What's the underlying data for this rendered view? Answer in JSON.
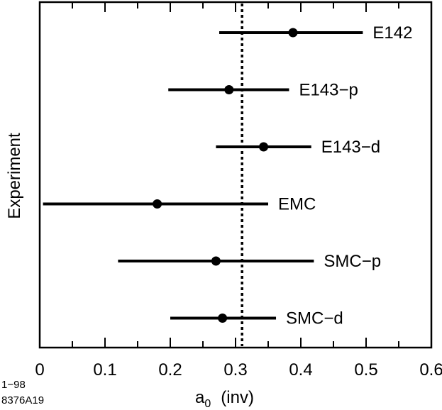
{
  "chart_data": {
    "type": "scatter",
    "title": "",
    "xlabel_main": "a",
    "xlabel_sub": "0",
    "xlabel_unit": "(inv)",
    "ylabel": "Experiment",
    "xlim": [
      0,
      0.6
    ],
    "x_ticks": [
      "0",
      "0.1",
      "0.2",
      "0.3",
      "0.4",
      "0.5",
      "0.6"
    ],
    "x_tick_values": [
      0,
      0.1,
      0.2,
      0.3,
      0.4,
      0.5,
      0.6
    ],
    "minor_tick_step": 0.05,
    "reference_line": 0.31,
    "reference_style": "dotted",
    "grid": false,
    "legend": "none",
    "points": [
      {
        "label": "E142",
        "value": 0.388,
        "low": 0.275,
        "high": 0.495
      },
      {
        "label": "E143−p",
        "value": 0.29,
        "low": 0.197,
        "high": 0.382
      },
      {
        "label": "E143−d",
        "value": 0.343,
        "low": 0.27,
        "high": 0.416
      },
      {
        "label": "EMC",
        "value": 0.18,
        "low": 0.005,
        "high": 0.35
      },
      {
        "label": "SMC−p",
        "value": 0.27,
        "low": 0.12,
        "high": 0.42
      },
      {
        "label": "SMC−d",
        "value": 0.28,
        "low": 0.2,
        "high": 0.362
      }
    ]
  },
  "notes": {
    "line1": "1−98",
    "line2": "8376A19"
  }
}
